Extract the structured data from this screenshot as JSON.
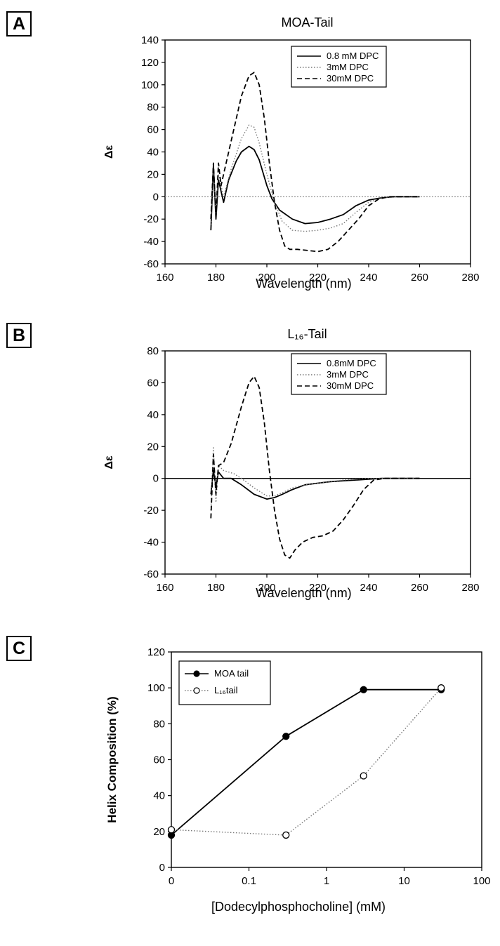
{
  "panels": [
    {
      "label": "A"
    },
    {
      "label": "B"
    },
    {
      "label": "C"
    }
  ],
  "chart_data": [
    {
      "type": "line",
      "title": "MOA-Tail",
      "xlabel": "Wavelength (nm)",
      "ylabel": "Δε",
      "xlim": [
        160,
        280
      ],
      "ylim": [
        -60,
        140
      ],
      "xticks": [
        160,
        180,
        200,
        220,
        240,
        260,
        280
      ],
      "yticks": [
        -60,
        -40,
        -20,
        0,
        20,
        40,
        60,
        80,
        100,
        120,
        140
      ],
      "zero_line": "dotted",
      "legend_position": "top-right",
      "series": [
        {
          "name": "0.8 mM DPC",
          "style": "solid",
          "x": [
            178,
            179,
            180,
            181,
            183,
            185,
            188,
            190,
            193,
            195,
            197,
            200,
            202,
            205,
            210,
            215,
            220,
            225,
            230,
            235,
            240,
            245,
            250,
            255,
            260
          ],
          "y": [
            -30,
            28,
            -20,
            15,
            -5,
            15,
            32,
            40,
            45,
            42,
            33,
            10,
            -2,
            -12,
            -20,
            -24,
            -23,
            -20,
            -16,
            -8,
            -3,
            -1,
            0,
            0,
            0
          ]
        },
        {
          "name": "3mM DPC",
          "style": "dotted",
          "x": [
            178,
            179,
            180,
            181,
            183,
            186,
            190,
            193,
            195,
            197,
            200,
            203,
            206,
            210,
            215,
            220,
            225,
            230,
            235,
            240,
            245,
            250,
            255,
            260
          ],
          "y": [
            -25,
            25,
            -15,
            20,
            0,
            25,
            52,
            64,
            62,
            48,
            20,
            -5,
            -22,
            -30,
            -31,
            -30,
            -28,
            -24,
            -14,
            -5,
            -1,
            0,
            0,
            0
          ]
        },
        {
          "name": "30mM DPC",
          "style": "dashed",
          "x": [
            178,
            179,
            180,
            181,
            182,
            184,
            187,
            190,
            193,
            195,
            197,
            199,
            201,
            203,
            205,
            207,
            209,
            212,
            216,
            220,
            224,
            228,
            232,
            236,
            240,
            244,
            248,
            252,
            256,
            260
          ],
          "y": [
            -20,
            30,
            -18,
            30,
            10,
            30,
            60,
            90,
            108,
            111,
            100,
            70,
            30,
            -5,
            -30,
            -44,
            -47,
            -47,
            -48,
            -49,
            -47,
            -40,
            -30,
            -20,
            -8,
            -2,
            0,
            0,
            0,
            0
          ]
        }
      ]
    },
    {
      "type": "line",
      "title": "L₁₆-Tail",
      "xlabel": "Wavelength (nm)",
      "ylabel": "Δε",
      "xlim": [
        160,
        280
      ],
      "ylim": [
        -60,
        80
      ],
      "xticks": [
        160,
        180,
        200,
        220,
        240,
        260,
        280
      ],
      "yticks": [
        -60,
        -40,
        -20,
        0,
        20,
        40,
        60,
        80
      ],
      "zero_line": "solid",
      "legend_position": "top-right",
      "series": [
        {
          "name": "0.8mM DPC",
          "style": "solid",
          "x": [
            178,
            179,
            180,
            181,
            183,
            186,
            190,
            195,
            200,
            203,
            206,
            210,
            215,
            220,
            225,
            230,
            235,
            240,
            245,
            250,
            260
          ],
          "y": [
            -10,
            5,
            -5,
            4,
            0,
            0,
            -4,
            -10,
            -13,
            -12,
            -10,
            -7,
            -4,
            -3,
            -2,
            -1.5,
            -1,
            -0.5,
            0,
            0,
            0
          ]
        },
        {
          "name": "3mM DPC",
          "style": "dotted",
          "x": [
            178,
            179,
            180,
            181,
            183,
            187,
            190,
            195,
            200,
            203,
            206,
            210,
            215,
            220,
            225,
            230,
            240,
            250,
            260
          ],
          "y": [
            -20,
            20,
            -15,
            8,
            5,
            3,
            0,
            -6,
            -11,
            -11,
            -9,
            -6,
            -4,
            -3,
            -2,
            -1,
            0,
            0,
            0
          ]
        },
        {
          "name": "30mM DPC",
          "style": "dashed",
          "x": [
            178,
            179,
            180,
            181,
            183,
            186,
            190,
            193,
            195,
            197,
            199,
            201,
            203,
            205,
            207,
            209,
            211,
            214,
            218,
            222,
            226,
            230,
            234,
            238,
            242,
            246,
            250,
            260
          ],
          "y": [
            -25,
            15,
            -10,
            8,
            10,
            22,
            45,
            60,
            64,
            57,
            35,
            5,
            -20,
            -38,
            -48,
            -50,
            -45,
            -40,
            -37,
            -36,
            -33,
            -26,
            -17,
            -7,
            -1,
            0,
            0,
            0
          ]
        }
      ]
    },
    {
      "type": "line",
      "title": "",
      "xlabel": "[Dodecylphosphocholine] (mM)",
      "ylabel": "Helix Composition (%)",
      "x_scale": "log",
      "xticks": [
        "0",
        "0.1",
        "1",
        "10",
        "100"
      ],
      "ylim": [
        0,
        120
      ],
      "yticks": [
        0,
        20,
        40,
        60,
        80,
        100,
        120
      ],
      "legend_position": "top-left",
      "series": [
        {
          "name": "MOA tail",
          "style": "solid",
          "marker": "filled-circle",
          "x": [
            0,
            0.3,
            3,
            30
          ],
          "y": [
            18,
            73,
            99,
            99
          ]
        },
        {
          "name": "L₁₆tail",
          "style": "dotted",
          "marker": "open-circle",
          "x": [
            0,
            0.3,
            3,
            30
          ],
          "y": [
            21,
            18,
            51,
            100
          ]
        }
      ]
    }
  ]
}
